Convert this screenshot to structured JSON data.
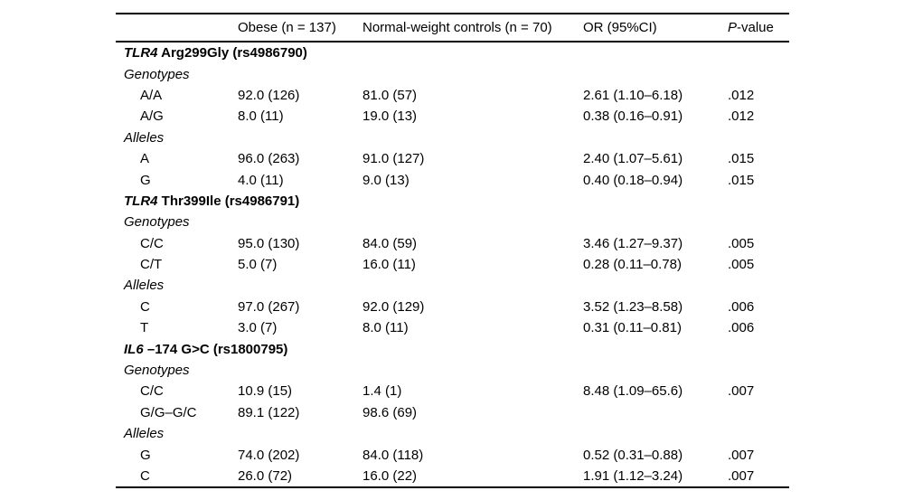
{
  "table": {
    "headers": {
      "obese": "Obese (n = 137)",
      "controls": "Normal-weight controls (n = 70)",
      "or": "OR (95%CI)",
      "p_italic": "P",
      "p_rest": "-value"
    },
    "sections": [
      {
        "gene": "TLR4",
        "title": "Arg299Gly (rs4986790)",
        "genotypes_label": "Genotypes",
        "alleles_label": "Alleles",
        "genotype_rows": [
          {
            "label": "A/A",
            "obese": "92.0 (126)",
            "controls": "81.0 (57)",
            "or": "2.61 (1.10–6.18)",
            "p": ".012"
          },
          {
            "label": "A/G",
            "obese": "8.0 (11)",
            "controls": "19.0 (13)",
            "or": "0.38 (0.16–0.91)",
            "p": ".012"
          }
        ],
        "allele_rows": [
          {
            "label": "A",
            "obese": "96.0 (263)",
            "controls": "91.0 (127)",
            "or": "2.40 (1.07–5.61)",
            "p": ".015"
          },
          {
            "label": "G",
            "obese": "4.0 (11)",
            "controls": "9.0 (13)",
            "or": "0.40 (0.18–0.94)",
            "p": ".015"
          }
        ]
      },
      {
        "gene": "TLR4",
        "title": "Thr399Ile (rs4986791)",
        "genotypes_label": "Genotypes",
        "alleles_label": "Alleles",
        "genotype_rows": [
          {
            "label": "C/C",
            "obese": "95.0 (130)",
            "controls": "84.0 (59)",
            "or": "3.46 (1.27–9.37)",
            "p": ".005"
          },
          {
            "label": "C/T",
            "obese": "5.0 (7)",
            "controls": "16.0 (11)",
            "or": "0.28 (0.11–0.78)",
            "p": ".005"
          }
        ],
        "allele_rows": [
          {
            "label": "C",
            "obese": "97.0 (267)",
            "controls": "92.0 (129)",
            "or": "3.52 (1.23–8.58)",
            "p": ".006"
          },
          {
            "label": "T",
            "obese": "3.0 (7)",
            "controls": "8.0 (11)",
            "or": "0.31 (0.11–0.81)",
            "p": ".006"
          }
        ]
      },
      {
        "gene": "IL6",
        "title": "–174 G>C (rs1800795)",
        "genotypes_label": "Genotypes",
        "alleles_label": "Alleles",
        "genotype_rows": [
          {
            "label": "C/C",
            "obese": "10.9 (15)",
            "controls": "1.4 (1)",
            "or": "8.48 (1.09–65.6)",
            "p": ".007"
          },
          {
            "label": "G/G–G/C",
            "obese": "89.1 (122)",
            "controls": "98.6 (69)",
            "or": "",
            "p": ""
          }
        ],
        "allele_rows": [
          {
            "label": "G",
            "obese": "74.0 (202)",
            "controls": "84.0 (118)",
            "or": "0.52 (0.31–0.88)",
            "p": ".007"
          },
          {
            "label": "C",
            "obese": "26.0 (72)",
            "controls": "16.0 (22)",
            "or": "1.91 (1.12–3.24)",
            "p": ".007"
          }
        ]
      }
    ]
  }
}
